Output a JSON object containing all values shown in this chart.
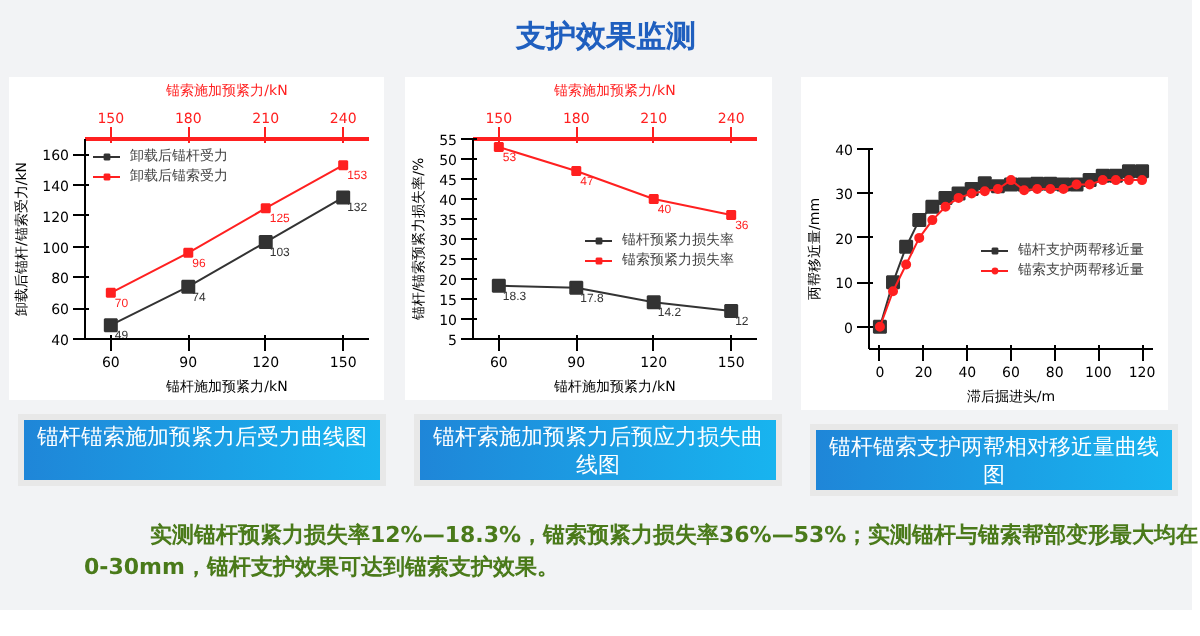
{
  "chart_data": [
    {
      "type": "other",
      "title": "支护效果监测",
      "annotations": [
        "实测锚杆预紧力损失率12%—18.3%，锚索预紧力损失率36%—53%；实测锚杆与锚索帮部变形最大均在0-30mm，锚杆支护效果可达到锚索支护效果。"
      ]
    },
    {
      "type": "line",
      "title": "锚杆锚索施加预紧力后受力曲线图",
      "xlabel": "锚杆施加预紧力/kN",
      "x2label": "锚索施加预紧力/kN",
      "ylabel": "卸载后锚杆/锚索受力/kN",
      "x": [
        60,
        90,
        120,
        150
      ],
      "xlim": [
        50,
        160
      ],
      "xticks": [
        60,
        90,
        120,
        150
      ],
      "x2lim": [
        140,
        250
      ],
      "x2ticks": [
        150,
        180,
        210,
        240
      ],
      "ylim": [
        40,
        170
      ],
      "yticks": [
        40,
        60,
        80,
        100,
        120,
        140,
        160
      ],
      "marker": "square",
      "data_labels": true,
      "legend": "top left",
      "series": [
        {
          "name": "卸载后锚杆受力",
          "color": "#333333",
          "values": [
            49,
            74,
            103,
            132
          ]
        },
        {
          "name": "卸载后锚索受力",
          "color": "#ff2020",
          "values": [
            70,
            96,
            125,
            153
          ]
        }
      ]
    },
    {
      "type": "line",
      "title": "锚杆索施加预紧力后预应力损失曲线图",
      "xlabel": "锚杆施加预紧力/kN",
      "x2label": "锚索施加预紧力/kN",
      "ylabel": "锚杆/锚索预紧力损失率/%",
      "x": [
        60,
        90,
        120,
        150
      ],
      "xlim": [
        50,
        160
      ],
      "xticks": [
        60,
        90,
        120,
        150
      ],
      "x2lim": [
        140,
        250
      ],
      "x2ticks": [
        150,
        180,
        210,
        240
      ],
      "ylim": [
        5,
        55
      ],
      "yticks": [
        5,
        10,
        15,
        20,
        25,
        30,
        35,
        40,
        45,
        50,
        55
      ],
      "marker": "square",
      "data_labels": true,
      "legend": "right",
      "series": [
        {
          "name": "锚杆预紧力损失率",
          "color": "#333333",
          "values": [
            18.3,
            17.8,
            14.2,
            12
          ]
        },
        {
          "name": "锚索预紧力损失率",
          "color": "#ff2020",
          "values": [
            53,
            47,
            40,
            36
          ]
        }
      ]
    },
    {
      "type": "line",
      "title": "锚杆锚索支护两帮相对移近量曲线图",
      "xlabel": "滞后掘进头/m",
      "ylabel": "两帮移近量/mm",
      "x": [
        0,
        6,
        12,
        18,
        24,
        30,
        36,
        42,
        48,
        54,
        60,
        66,
        72,
        78,
        84,
        90,
        96,
        102,
        108,
        114,
        120
      ],
      "xlim": [
        -5,
        125
      ],
      "xticks": [
        0,
        20,
        40,
        60,
        80,
        100,
        120
      ],
      "ylim": [
        -5,
        40
      ],
      "yticks": [
        0,
        10,
        20,
        30,
        40
      ],
      "legend": "right",
      "series": [
        {
          "name": "锚杆支护两帮移近量",
          "color": "#333333",
          "marker": "square",
          "values": [
            0,
            10,
            18,
            24,
            27,
            29,
            30,
            31,
            32.3,
            31.6,
            32,
            32,
            32.2,
            32.2,
            32,
            32,
            33,
            34,
            34,
            35,
            35
          ]
        },
        {
          "name": "锚索支护两帮移近量",
          "color": "#ff2020",
          "marker": "circle",
          "values": [
            0,
            8,
            14,
            20,
            24,
            27,
            29,
            30,
            30.5,
            31,
            33,
            30.7,
            31,
            31,
            31,
            32,
            32,
            33,
            33,
            33,
            33
          ]
        }
      ]
    }
  ]
}
